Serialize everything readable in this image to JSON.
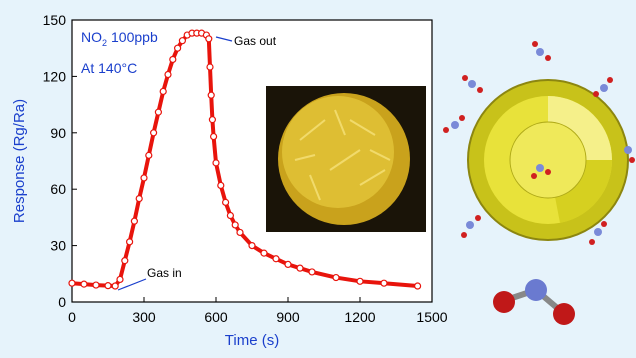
{
  "chart_data": {
    "type": "line",
    "xlabel": "Time (s)",
    "ylabel": "Response (Rg/Ra)",
    "annotations": {
      "gas": "NO",
      "gas_sub": "2",
      "conc": "100ppb",
      "temp": "At 140°C",
      "gas_out": "Gas out",
      "gas_in": "Gas in"
    },
    "xlim": [
      0,
      1500
    ],
    "ylim": [
      0,
      150
    ],
    "xticks": [
      0,
      300,
      600,
      900,
      1200,
      1500
    ],
    "yticks": [
      0,
      30,
      60,
      90,
      120,
      150
    ],
    "series": [
      {
        "color": "#e8140c",
        "x": [
          0,
          50,
          100,
          150,
          180,
          200,
          220,
          240,
          260,
          280,
          300,
          320,
          340,
          360,
          380,
          400,
          420,
          440,
          460,
          480,
          500,
          520,
          540,
          560,
          570,
          575,
          580,
          585,
          590,
          600,
          620,
          640,
          660,
          680,
          700,
          750,
          800,
          850,
          900,
          950,
          1000,
          1100,
          1200,
          1300,
          1440
        ],
        "values": [
          10,
          9.5,
          9,
          8.7,
          8.5,
          12,
          22,
          32,
          43,
          55,
          66,
          78,
          90,
          101,
          112,
          121,
          129,
          135,
          139,
          142,
          143,
          143,
          143,
          142,
          140,
          125,
          110,
          97,
          88,
          74,
          62,
          53,
          46,
          41,
          37,
          30,
          26,
          23,
          20,
          18,
          16,
          13,
          11,
          10,
          8.5
        ]
      }
    ]
  }
}
